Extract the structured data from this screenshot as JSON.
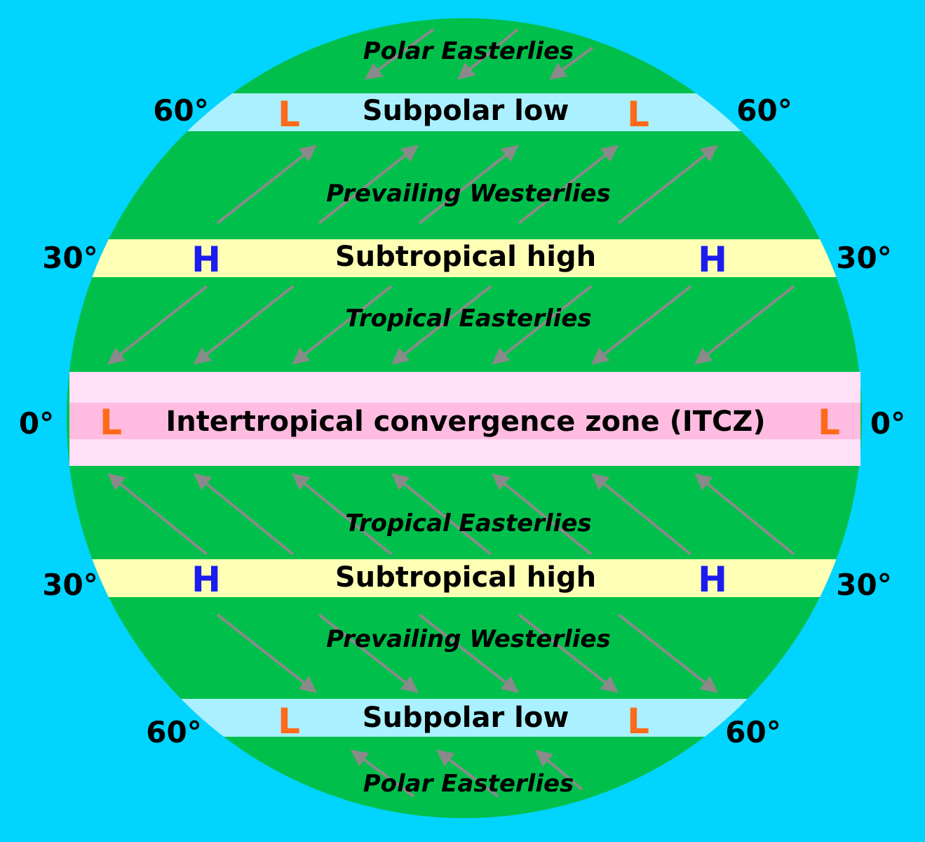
{
  "colors": {
    "background": "#00d4ff",
    "earth": "#00c04b",
    "subpolar_band": "#aaf0ff",
    "subtropical_band": "#fdffb5",
    "itcz_outer": "#ffe0f7",
    "itcz_inner": "#ffbce0",
    "arrow": "#8a8a8a",
    "low_color": "#ff6a1a",
    "high_color": "#1c1cf0"
  },
  "bands": {
    "subpolar_low_north": "Subpolar low",
    "subtropical_high_north": "Subtropical high",
    "itcz": "Intertropical convergence zone (ITCZ)",
    "subtropical_high_south": "Subtropical high",
    "subpolar_low_south": "Subpolar low"
  },
  "winds": {
    "polar_easterlies_north": "Polar Easterlies",
    "prevailing_westerlies_north": "Prevailing Westerlies",
    "tropical_easterlies_north": "Tropical Easterlies",
    "tropical_easterlies_south": "Tropical Easterlies",
    "prevailing_westerlies_south": "Prevailing Westerlies",
    "polar_easterlies_south": "Polar Easterlies"
  },
  "latitudes": {
    "sixty": "60°",
    "thirty": "30°",
    "zero": "0°"
  },
  "pressure": {
    "low": "L",
    "high": "H"
  }
}
